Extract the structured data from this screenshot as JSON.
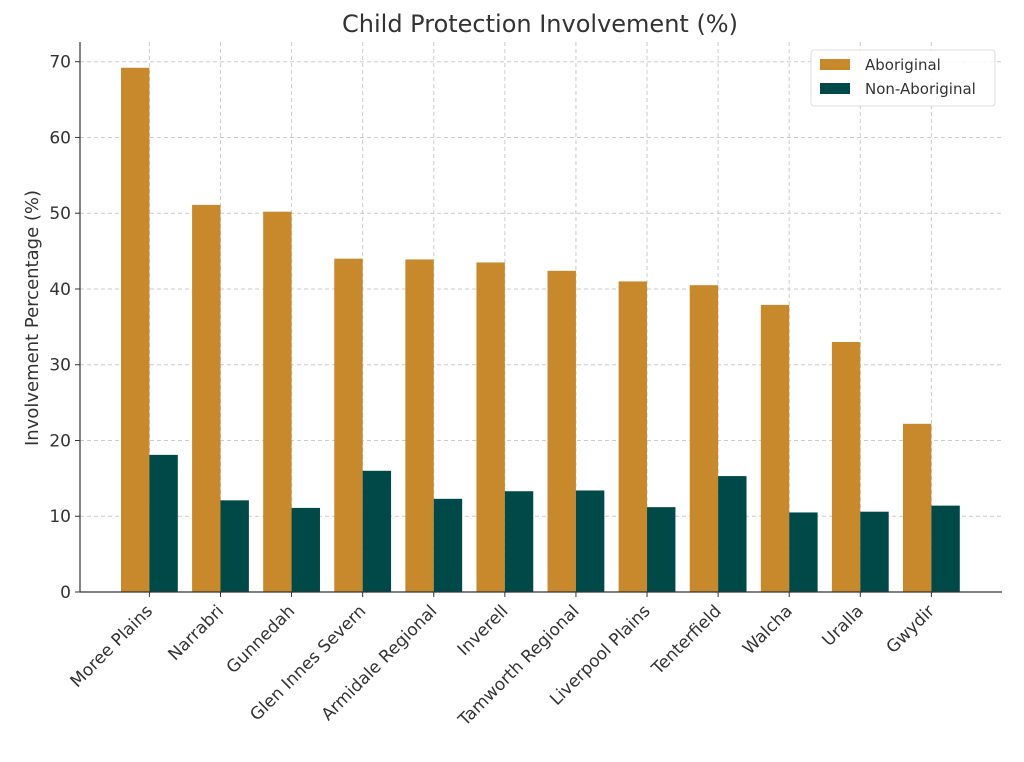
{
  "chart_data": {
    "type": "bar",
    "title": "Child Protection Involvement (%)",
    "xlabel": "",
    "ylabel": "Involvement Percentage (%)",
    "ylim": [
      0,
      72.6
    ],
    "yticks": [
      0,
      10,
      20,
      30,
      40,
      50,
      60,
      70
    ],
    "grid": true,
    "legend_position": "top-right",
    "categories": [
      "Moree Plains",
      "Narrabri",
      "Gunnedah",
      "Glen Innes Severn",
      "Armidale Regional",
      "Inverell",
      "Tamworth Regional",
      "Liverpool Plains",
      "Tenterfield",
      "Walcha",
      "Uralla",
      "Gwydir"
    ],
    "series": [
      {
        "name": "Aboriginal",
        "color": "#c8892c",
        "values": [
          69.2,
          51.1,
          50.2,
          44.0,
          43.9,
          43.5,
          42.4,
          41.0,
          40.5,
          37.9,
          33.0,
          22.2
        ]
      },
      {
        "name": "Non-Aboriginal",
        "color": "#004949",
        "values": [
          18.1,
          12.1,
          11.1,
          16.0,
          12.3,
          13.3,
          13.4,
          11.2,
          15.3,
          10.5,
          10.6,
          11.4
        ]
      }
    ]
  }
}
